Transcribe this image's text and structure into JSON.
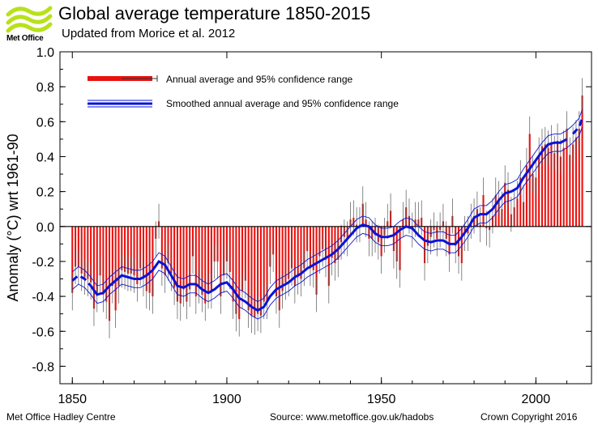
{
  "header": {
    "logo_text": "Met Office",
    "title": "Global average temperature 1850-2015",
    "subtitle": "Updated from Morice et al. 2012"
  },
  "footer": {
    "left": "Met Office Hadley Centre",
    "center": "Source: www.metoffice.gov.uk/hadobs",
    "right": "Crown Copyright 2016"
  },
  "chart_data": {
    "type": "bar",
    "ylabel": "Anomaly (°C) wrt 1961-90",
    "xlabel": "",
    "xlim": [
      1846,
      2018
    ],
    "ylim": [
      -0.9,
      1.0
    ],
    "xticks": [
      1850,
      1900,
      1950,
      2000
    ],
    "yticks": [
      -0.8,
      -0.6,
      -0.4,
      -0.2,
      0.0,
      0.2,
      0.4,
      0.6,
      0.8,
      1.0
    ],
    "grid": false,
    "legend_position": "top-left",
    "colors": {
      "bars": "#e8120f",
      "smooth": "#0a13d8",
      "zero_line": "#000000",
      "error_bars": "#555555"
    },
    "series": [
      {
        "name": "Annual average and 95% confidence range",
        "x": [
          1850,
          1851,
          1852,
          1853,
          1854,
          1855,
          1856,
          1857,
          1858,
          1859,
          1860,
          1861,
          1862,
          1863,
          1864,
          1865,
          1866,
          1867,
          1868,
          1869,
          1870,
          1871,
          1872,
          1873,
          1874,
          1875,
          1876,
          1877,
          1878,
          1879,
          1880,
          1881,
          1882,
          1883,
          1884,
          1885,
          1886,
          1887,
          1888,
          1889,
          1890,
          1891,
          1892,
          1893,
          1894,
          1895,
          1896,
          1897,
          1898,
          1899,
          1900,
          1901,
          1902,
          1903,
          1904,
          1905,
          1906,
          1907,
          1908,
          1909,
          1910,
          1911,
          1912,
          1913,
          1914,
          1915,
          1916,
          1917,
          1918,
          1919,
          1920,
          1921,
          1922,
          1923,
          1924,
          1925,
          1926,
          1927,
          1928,
          1929,
          1930,
          1931,
          1932,
          1933,
          1934,
          1935,
          1936,
          1937,
          1938,
          1939,
          1940,
          1941,
          1942,
          1943,
          1944,
          1945,
          1946,
          1947,
          1948,
          1949,
          1950,
          1951,
          1952,
          1953,
          1954,
          1955,
          1956,
          1957,
          1958,
          1959,
          1960,
          1961,
          1962,
          1963,
          1964,
          1965,
          1966,
          1967,
          1968,
          1969,
          1970,
          1971,
          1972,
          1973,
          1974,
          1975,
          1976,
          1977,
          1978,
          1979,
          1980,
          1981,
          1982,
          1983,
          1984,
          1985,
          1986,
          1987,
          1988,
          1989,
          1990,
          1991,
          1992,
          1993,
          1994,
          1995,
          1996,
          1997,
          1998,
          1999,
          2000,
          2001,
          2002,
          2003,
          2004,
          2005,
          2006,
          2007,
          2008,
          2009,
          2010,
          2011,
          2012,
          2013,
          2014,
          2015
        ],
        "values": [
          -0.38,
          -0.23,
          -0.23,
          -0.27,
          -0.29,
          -0.3,
          -0.32,
          -0.47,
          -0.39,
          -0.28,
          -0.39,
          -0.43,
          -0.54,
          -0.34,
          -0.48,
          -0.34,
          -0.25,
          -0.26,
          -0.27,
          -0.27,
          -0.28,
          -0.33,
          -0.24,
          -0.3,
          -0.37,
          -0.38,
          -0.4,
          -0.07,
          0.03,
          -0.24,
          -0.28,
          -0.21,
          -0.27,
          -0.35,
          -0.43,
          -0.44,
          -0.36,
          -0.43,
          -0.36,
          -0.17,
          -0.4,
          -0.34,
          -0.39,
          -0.44,
          -0.37,
          -0.37,
          -0.2,
          -0.2,
          -0.4,
          -0.28,
          -0.2,
          -0.26,
          -0.43,
          -0.5,
          -0.53,
          -0.37,
          -0.31,
          -0.48,
          -0.51,
          -0.52,
          -0.5,
          -0.51,
          -0.43,
          -0.43,
          -0.23,
          -0.16,
          -0.4,
          -0.48,
          -0.37,
          -0.32,
          -0.3,
          -0.24,
          -0.34,
          -0.29,
          -0.3,
          -0.24,
          -0.14,
          -0.24,
          -0.25,
          -0.39,
          -0.17,
          -0.13,
          -0.19,
          -0.34,
          -0.18,
          -0.21,
          -0.19,
          -0.09,
          -0.06,
          -0.07,
          0.04,
          0.05,
          0.01,
          0.01,
          0.13,
          0.04,
          -0.07,
          -0.07,
          -0.05,
          -0.09,
          -0.17,
          -0.05,
          0.03,
          0.09,
          -0.14,
          -0.2,
          -0.25,
          0.04,
          0.11,
          0.06,
          -0.02,
          0.04,
          0.04,
          0.05,
          -0.21,
          -0.11,
          -0.06,
          -0.02,
          -0.07,
          -0.02,
          0.03,
          -0.07,
          -0.16,
          0.06,
          -0.11,
          -0.17,
          -0.21,
          -0.04,
          -0.04,
          0.03,
          0.06,
          0.1,
          0.01,
          0.18,
          -0.01,
          -0.02,
          0.06,
          0.18,
          0.16,
          0.1,
          0.25,
          0.21,
          0.07,
          0.11,
          0.16,
          0.28,
          0.14,
          0.35,
          0.53,
          0.3,
          0.28,
          0.41,
          0.46,
          0.47,
          0.45,
          0.48,
          0.42,
          0.49,
          0.4,
          0.45,
          0.56,
          0.41,
          0.47,
          0.51,
          0.56,
          0.75
        ],
        "ci_half_width": 0.1
      },
      {
        "name": "Smoothed annual average and 95% confidence range",
        "x": [
          1850,
          1852,
          1854,
          1856,
          1858,
          1860,
          1862,
          1864,
          1866,
          1868,
          1870,
          1872,
          1874,
          1876,
          1878,
          1880,
          1882,
          1884,
          1886,
          1888,
          1890,
          1892,
          1894,
          1896,
          1898,
          1900,
          1902,
          1904,
          1906,
          1908,
          1910,
          1912,
          1914,
          1916,
          1918,
          1920,
          1922,
          1924,
          1926,
          1928,
          1930,
          1932,
          1934,
          1936,
          1938,
          1940,
          1942,
          1944,
          1946,
          1948,
          1950,
          1952,
          1954,
          1956,
          1958,
          1960,
          1962,
          1964,
          1966,
          1968,
          1970,
          1972,
          1974,
          1976,
          1978,
          1980,
          1982,
          1984,
          1986,
          1988,
          1990,
          1992,
          1994,
          1996,
          1998,
          2000,
          2002,
          2004,
          2006,
          2008,
          2010,
          2012,
          2014,
          2015
        ],
        "values": [
          -0.31,
          -0.28,
          -0.3,
          -0.34,
          -0.39,
          -0.38,
          -0.34,
          -0.31,
          -0.28,
          -0.29,
          -0.3,
          -0.3,
          -0.28,
          -0.25,
          -0.2,
          -0.22,
          -0.28,
          -0.34,
          -0.35,
          -0.33,
          -0.33,
          -0.36,
          -0.38,
          -0.36,
          -0.33,
          -0.32,
          -0.36,
          -0.41,
          -0.43,
          -0.46,
          -0.48,
          -0.46,
          -0.4,
          -0.36,
          -0.34,
          -0.32,
          -0.29,
          -0.27,
          -0.24,
          -0.22,
          -0.2,
          -0.18,
          -0.16,
          -0.13,
          -0.09,
          -0.05,
          -0.01,
          0.01,
          0.0,
          -0.04,
          -0.06,
          -0.06,
          -0.05,
          -0.02,
          0.0,
          -0.01,
          -0.05,
          -0.08,
          -0.09,
          -0.08,
          -0.08,
          -0.1,
          -0.1,
          -0.06,
          -0.01,
          0.05,
          0.07,
          0.07,
          0.1,
          0.15,
          0.19,
          0.2,
          0.22,
          0.28,
          0.33,
          0.38,
          0.43,
          0.47,
          0.48,
          0.48,
          0.5,
          0.53,
          0.57,
          0.62
        ],
        "ci_half_width": 0.05,
        "dashed_before": 1856,
        "dashed_after": 2011
      }
    ]
  }
}
